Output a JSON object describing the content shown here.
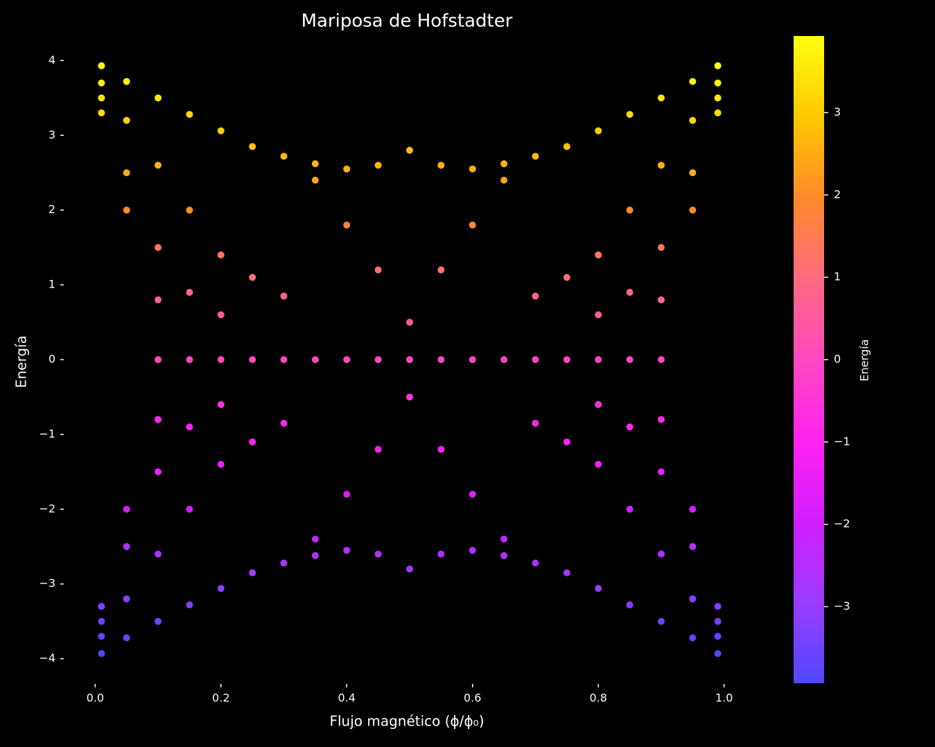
{
  "chart_data": {
    "type": "scatter",
    "title": "Mariposa de Hofstadter",
    "xlabel": "Flujo magnético (ϕ/ϕ₀)",
    "ylabel": "Energía",
    "colorbar_label": "Energía",
    "x": [
      0.01,
      0.05,
      0.1,
      0.15,
      0.2,
      0.25,
      0.3,
      0.35,
      0.4,
      0.45,
      0.5,
      0.01,
      0.05,
      0.1,
      0.15,
      0.2,
      0.25,
      0.3,
      0.35,
      0.4,
      0.45,
      0.5,
      0.01,
      0.05,
      0.1,
      0.15,
      0.2,
      0.01,
      0.05,
      0.1,
      0.99,
      0.95,
      0.9,
      0.85,
      0.8,
      0.75,
      0.7,
      0.65,
      0.6,
      0.55,
      0.99,
      0.95,
      0.9,
      0.85,
      0.8,
      0.75,
      0.7,
      0.65,
      0.6,
      0.55,
      0.99,
      0.95,
      0.9,
      0.85,
      0.8,
      0.99,
      0.95,
      0.9,
      0.01,
      0.05,
      0.1,
      0.15,
      0.2,
      0.25,
      0.3,
      0.35,
      0.4,
      0.45,
      0.5,
      0.01,
      0.05,
      0.1,
      0.15,
      0.2,
      0.25,
      0.3,
      0.35,
      0.4,
      0.45,
      0.5,
      0.01,
      0.05,
      0.1,
      0.15,
      0.2,
      0.01,
      0.05,
      0.1,
      0.99,
      0.95,
      0.9,
      0.85,
      0.8,
      0.75,
      0.7,
      0.65,
      0.6,
      0.55,
      0.99,
      0.95,
      0.9,
      0.85,
      0.8,
      0.75,
      0.7,
      0.65,
      0.6,
      0.55,
      0.99,
      0.95,
      0.9,
      0.85,
      0.8,
      0.99,
      0.95,
      0.9,
      0.1,
      0.15,
      0.2,
      0.25,
      0.3,
      0.35,
      0.4,
      0.45,
      0.5,
      0.55,
      0.6,
      0.65,
      0.7,
      0.75,
      0.8,
      0.85,
      0.9
    ],
    "values": [
      3.93,
      3.72,
      3.5,
      3.28,
      3.06,
      2.85,
      2.72,
      2.62,
      2.55,
      2.6,
      2.8,
      3.7,
      3.2,
      2.6,
      2.0,
      1.4,
      1.1,
      0.85,
      2.4,
      1.8,
      1.2,
      0.5,
      3.5,
      2.5,
      1.5,
      0.9,
      0.6,
      3.3,
      2.0,
      0.8,
      3.93,
      3.72,
      3.5,
      3.28,
      3.06,
      2.85,
      2.72,
      2.62,
      2.55,
      2.6,
      3.7,
      3.2,
      2.6,
      2.0,
      1.4,
      1.1,
      0.85,
      2.4,
      1.8,
      1.2,
      3.5,
      2.5,
      1.5,
      0.9,
      0.6,
      3.3,
      2.0,
      0.8,
      -3.93,
      -3.72,
      -3.5,
      -3.28,
      -3.06,
      -2.85,
      -2.72,
      -2.62,
      -2.55,
      -2.6,
      -2.8,
      -3.7,
      -3.2,
      -2.6,
      -2.0,
      -1.4,
      -1.1,
      -0.85,
      -2.4,
      -1.8,
      -1.2,
      -0.5,
      -3.5,
      -2.5,
      -1.5,
      -0.9,
      -0.6,
      -3.3,
      -2.0,
      -0.8,
      -3.93,
      -3.72,
      -3.5,
      -3.28,
      -3.06,
      -2.85,
      -2.72,
      -2.62,
      -2.55,
      -2.6,
      -3.7,
      -3.2,
      -2.6,
      -2.0,
      -1.4,
      -1.1,
      -0.85,
      -2.4,
      -1.8,
      -1.2,
      -3.5,
      -2.5,
      -1.5,
      -0.9,
      -0.6,
      -3.3,
      -2.0,
      -0.8,
      0,
      0,
      0,
      0,
      0,
      0,
      0,
      0,
      0,
      0,
      0,
      0,
      0,
      0,
      0,
      0,
      0
    ],
    "xlim": [
      -0.04,
      1.04
    ],
    "ylim": [
      -4.3,
      4.3
    ],
    "xticks": [
      {
        "value": 0,
        "label": "0.0"
      },
      {
        "value": 0.2,
        "label": "0.2"
      },
      {
        "value": 0.4,
        "label": "0.4"
      },
      {
        "value": 0.6,
        "label": "0.6"
      },
      {
        "value": 0.8,
        "label": "0.8"
      },
      {
        "value": 1,
        "label": "1.0"
      }
    ],
    "yticks": [
      {
        "value": -4,
        "label": "−4"
      },
      {
        "value": -3,
        "label": "−3"
      },
      {
        "value": -2,
        "label": "−2"
      },
      {
        "value": -1,
        "label": "−1"
      },
      0,
      1,
      2,
      3,
      4
    ],
    "clim": [
      -3.93,
      3.93
    ],
    "cticks": [
      {
        "value": -3,
        "label": "−3"
      },
      {
        "value": -2,
        "label": "−2"
      },
      {
        "value": -1,
        "label": "−1"
      },
      0,
      1,
      2,
      3
    ],
    "colormap": [
      "#5048ff",
      "#9a3cff",
      "#d21eff",
      "#ff22f0",
      "#ff48c0",
      "#ff6a80",
      "#ff8a2a",
      "#ffc800",
      "#ffff10"
    ],
    "background": "#000000"
  }
}
